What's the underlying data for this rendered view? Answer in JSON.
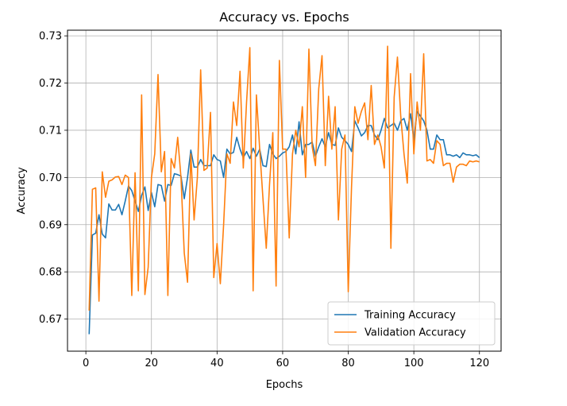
{
  "chart_data": {
    "type": "line",
    "title": "Accuracy vs. Epochs",
    "xlabel": "Epochs",
    "ylabel": "Accuracy",
    "xlim": [
      -5.6,
      126.6
    ],
    "ylim": [
      0.6632,
      0.7312
    ],
    "xticks": [
      0,
      20,
      40,
      60,
      80,
      100,
      120
    ],
    "yticks": [
      0.67,
      0.68,
      0.69,
      0.7,
      0.71,
      0.72,
      0.73
    ],
    "xtick_labels": [
      "0",
      "20",
      "40",
      "60",
      "80",
      "100",
      "120"
    ],
    "ytick_labels": [
      "0.67",
      "0.68",
      "0.69",
      "0.70",
      "0.71",
      "0.72",
      "0.73"
    ],
    "grid": true,
    "legend_position": "lower right",
    "x": [
      1,
      2,
      3,
      4,
      5,
      6,
      7,
      8,
      9,
      10,
      11,
      12,
      13,
      14,
      15,
      16,
      17,
      18,
      19,
      20,
      21,
      22,
      23,
      24,
      25,
      26,
      27,
      28,
      29,
      30,
      31,
      32,
      33,
      34,
      35,
      36,
      37,
      38,
      39,
      40,
      41,
      42,
      43,
      44,
      45,
      46,
      47,
      48,
      49,
      50,
      51,
      52,
      53,
      54,
      55,
      56,
      57,
      58,
      59,
      60,
      61,
      62,
      63,
      64,
      65,
      66,
      67,
      68,
      69,
      70,
      71,
      72,
      73,
      74,
      75,
      76,
      77,
      78,
      79,
      80,
      81,
      82,
      83,
      84,
      85,
      86,
      87,
      88,
      89,
      90,
      91,
      92,
      93,
      94,
      95,
      96,
      97,
      98,
      99,
      100,
      101,
      102,
      103,
      104,
      105,
      106,
      107,
      108,
      109,
      110,
      111,
      112,
      113,
      114,
      115,
      116,
      117,
      118,
      119,
      120
    ],
    "series": [
      {
        "name": "Training Accuracy",
        "color": "#1f77b4",
        "values": [
          0.6668,
          0.6878,
          0.6882,
          0.6921,
          0.688,
          0.6872,
          0.6944,
          0.6931,
          0.6931,
          0.6943,
          0.6921,
          0.695,
          0.6982,
          0.6972,
          0.695,
          0.6928,
          0.6962,
          0.698,
          0.693,
          0.6968,
          0.6938,
          0.6985,
          0.6983,
          0.695,
          0.6985,
          0.6983,
          0.7008,
          0.7006,
          0.7003,
          0.6955,
          0.7,
          0.7058,
          0.7022,
          0.7022,
          0.7038,
          0.7025,
          0.7025,
          0.7025,
          0.7048,
          0.7038,
          0.7035,
          0.7,
          0.706,
          0.705,
          0.7053,
          0.7085,
          0.706,
          0.7042,
          0.7055,
          0.704,
          0.7062,
          0.7045,
          0.706,
          0.7025,
          0.7023,
          0.707,
          0.705,
          0.704,
          0.7045,
          0.7052,
          0.7055,
          0.7065,
          0.709,
          0.705,
          0.7118,
          0.7048,
          0.707,
          0.707,
          0.7075,
          0.7045,
          0.7065,
          0.7082,
          0.7065,
          0.7095,
          0.707,
          0.7068,
          0.7105,
          0.7085,
          0.7078,
          0.707,
          0.7055,
          0.712,
          0.7105,
          0.7088,
          0.7095,
          0.711,
          0.711,
          0.709,
          0.708,
          0.71,
          0.7125,
          0.7105,
          0.711,
          0.7115,
          0.71,
          0.712,
          0.7125,
          0.71,
          0.7135,
          0.708,
          0.714,
          0.713,
          0.712,
          0.71,
          0.706,
          0.706,
          0.709,
          0.708,
          0.708,
          0.7048,
          0.7048,
          0.7045,
          0.7048,
          0.7042,
          0.7052,
          0.7048,
          0.7048,
          0.7046,
          0.7048,
          0.7042
        ]
      },
      {
        "name": "Validation Accuracy",
        "color": "#ff7f0e",
        "values": [
          0.6718,
          0.6975,
          0.6978,
          0.6738,
          0.7012,
          0.6958,
          0.6992,
          0.6995,
          0.7001,
          0.7002,
          0.6985,
          0.7005,
          0.7,
          0.675,
          0.701,
          0.676,
          0.7175,
          0.6752,
          0.681,
          0.7,
          0.705,
          0.7218,
          0.7012,
          0.7055,
          0.675,
          0.704,
          0.702,
          0.7085,
          0.7,
          0.684,
          0.6778,
          0.705,
          0.691,
          0.7,
          0.7228,
          0.7015,
          0.702,
          0.7138,
          0.6788,
          0.686,
          0.6775,
          0.69,
          0.705,
          0.703,
          0.716,
          0.711,
          0.7225,
          0.702,
          0.716,
          0.7275,
          0.676,
          0.7175,
          0.706,
          0.6955,
          0.685,
          0.6985,
          0.7095,
          0.677,
          0.7248,
          0.706,
          0.706,
          0.6872,
          0.705,
          0.71,
          0.7065,
          0.715,
          0.7,
          0.7272,
          0.7065,
          0.7025,
          0.7188,
          0.7258,
          0.7025,
          0.7172,
          0.706,
          0.715,
          0.691,
          0.706,
          0.709,
          0.6758,
          0.698,
          0.715,
          0.7115,
          0.714,
          0.7158,
          0.708,
          0.7195,
          0.707,
          0.709,
          0.7065,
          0.702,
          0.7278,
          0.685,
          0.717,
          0.7255,
          0.713,
          0.705,
          0.6988,
          0.722,
          0.705,
          0.716,
          0.71,
          0.7262,
          0.7035,
          0.7038,
          0.703,
          0.7078,
          0.707,
          0.7025,
          0.703,
          0.703,
          0.699,
          0.7022,
          0.7028,
          0.7028,
          0.7025,
          0.7035,
          0.7033,
          0.7035,
          0.7033
        ]
      }
    ]
  }
}
